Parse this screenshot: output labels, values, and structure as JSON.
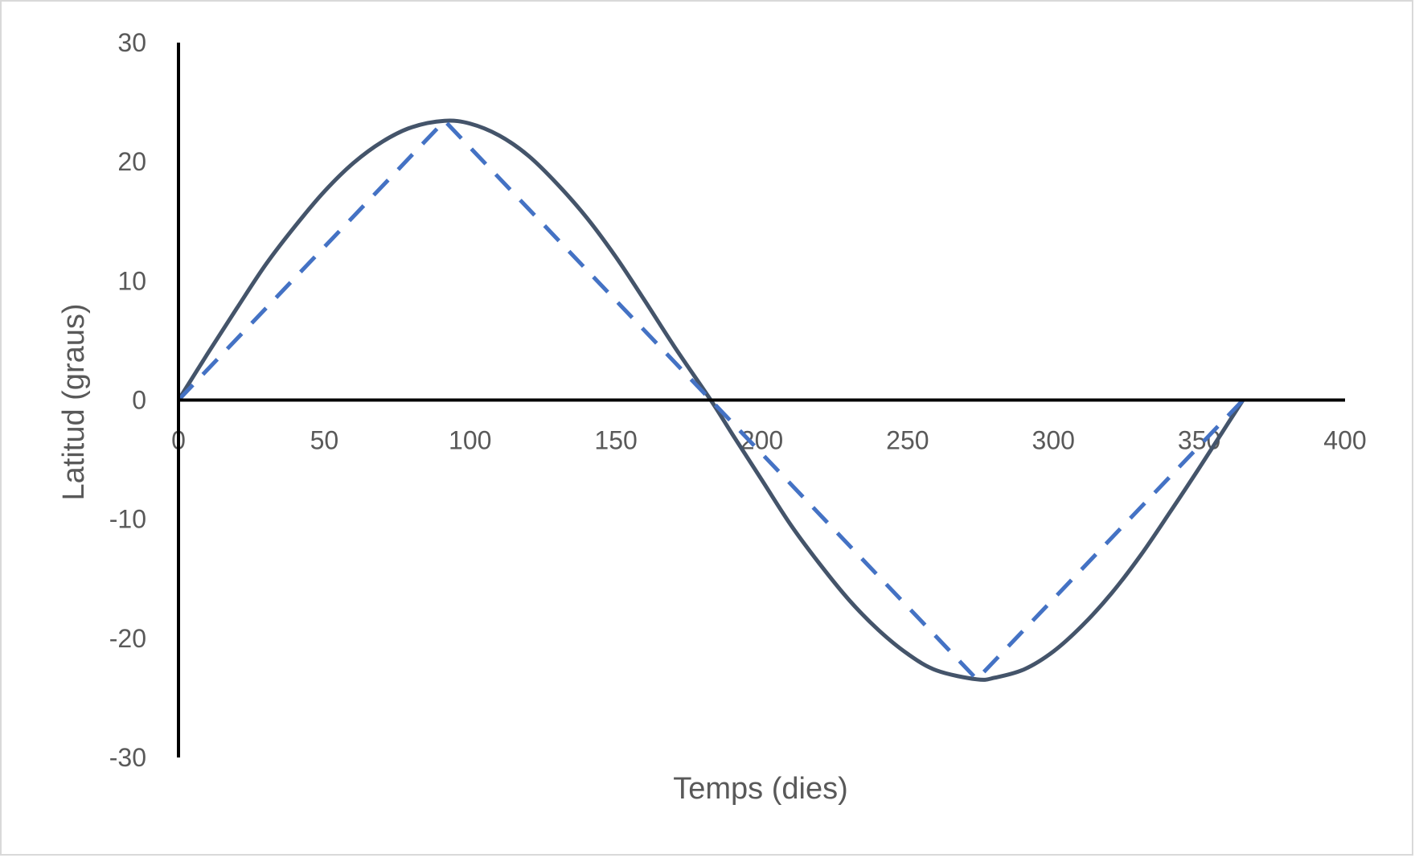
{
  "chart_data": {
    "type": "line",
    "title": "",
    "xlabel": "Temps (dies)",
    "ylabel": "Latitud (graus)",
    "xlim": [
      0,
      400
    ],
    "ylim": [
      -30,
      30
    ],
    "x_ticks": [
      0,
      50,
      100,
      150,
      200,
      250,
      300,
      350,
      400
    ],
    "y_ticks": [
      30,
      20,
      10,
      0,
      -10,
      -20,
      -30
    ],
    "grid": false,
    "legend": "none",
    "series": [
      {
        "style": "solid",
        "color": "#44546A",
        "x": [
          0,
          10,
          20,
          30,
          40,
          50,
          60,
          70,
          80,
          91.25,
          100,
          110,
          120,
          130,
          140,
          150,
          160,
          170,
          182.5,
          190,
          200,
          210,
          220,
          230,
          240,
          250,
          260,
          273.75,
          280,
          290,
          300,
          310,
          320,
          330,
          340,
          350,
          365
        ],
        "y": [
          0,
          3.9,
          7.7,
          11.4,
          14.6,
          17.5,
          19.9,
          21.7,
          22.9,
          23.44,
          23.2,
          22.2,
          20.5,
          18.1,
          15.3,
          12.0,
          8.3,
          4.5,
          0,
          -2.9,
          -6.7,
          -10.5,
          -13.8,
          -16.8,
          -19.3,
          -21.3,
          -22.7,
          -23.44,
          -23.3,
          -22.6,
          -21.1,
          -18.9,
          -16.2,
          -13.0,
          -9.4,
          -5.7,
          0
        ]
      },
      {
        "style": "dashed",
        "color": "#4472C4",
        "x": [
          0,
          91.25,
          182.5,
          273.75,
          365
        ],
        "y": [
          0,
          23.44,
          0,
          -23.44,
          0
        ]
      }
    ]
  }
}
